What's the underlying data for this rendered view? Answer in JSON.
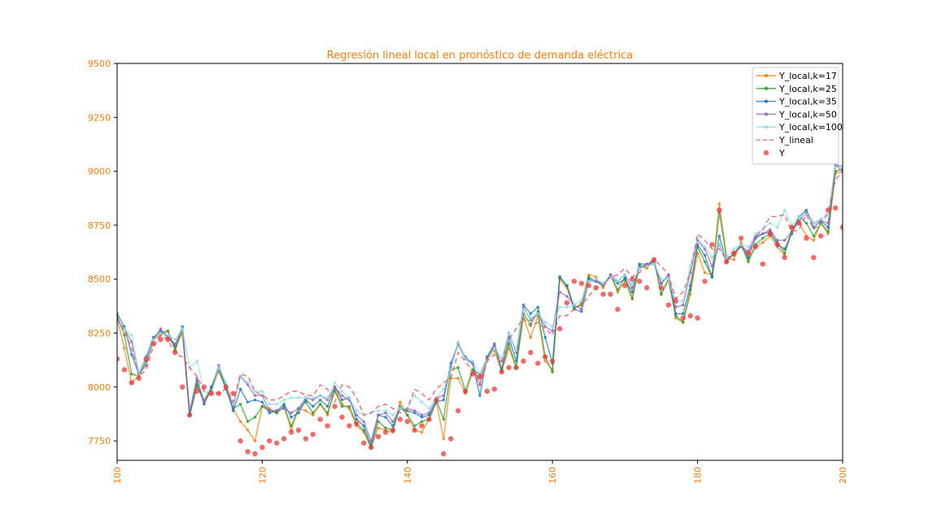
{
  "chart_data": {
    "type": "line",
    "title": "Regresión lineal local en pronóstico de demanda eléctrica",
    "xlabel": "",
    "ylabel": "",
    "xlim": [
      100,
      200
    ],
    "ylim": [
      7660,
      9500
    ],
    "xticks": [
      "100",
      "120",
      "140",
      "160",
      "180",
      "200"
    ],
    "yticks": [
      "7750",
      "8000",
      "8250",
      "8500",
      "8750",
      "9000",
      "9250",
      "9500"
    ],
    "grid": false,
    "legend_position": "top-right",
    "accent_color": "#ff7f0e",
    "x": [
      100,
      101,
      102,
      103,
      104,
      105,
      106,
      107,
      108,
      109,
      110,
      111,
      112,
      113,
      114,
      115,
      116,
      117,
      118,
      119,
      120,
      121,
      122,
      123,
      124,
      125,
      126,
      127,
      128,
      129,
      130,
      131,
      132,
      133,
      134,
      135,
      136,
      137,
      138,
      139,
      140,
      141,
      142,
      143,
      144,
      145,
      146,
      147,
      148,
      149,
      150,
      151,
      152,
      153,
      154,
      155,
      156,
      157,
      158,
      159,
      160,
      161,
      162,
      163,
      164,
      165,
      166,
      167,
      168,
      169,
      170,
      171,
      172,
      173,
      174,
      175,
      176,
      177,
      178,
      179,
      180,
      181,
      182,
      183,
      184,
      185,
      186,
      187,
      188,
      189,
      190,
      191,
      192,
      193,
      194,
      195,
      196,
      197,
      198,
      199,
      200
    ],
    "series": [
      {
        "name": "Y_local,k=17",
        "color": "#ff7f0e",
        "style": "solid-dot",
        "values": [
          8320,
          8180,
          8020,
          8050,
          8120,
          8220,
          8240,
          8260,
          8180,
          8250,
          7870,
          8000,
          7940,
          7990,
          8070,
          8000,
          7900,
          7840,
          7800,
          7750,
          7910,
          7900,
          7880,
          7910,
          7800,
          7900,
          7890,
          7870,
          7920,
          7870,
          7990,
          7920,
          7900,
          7820,
          7790,
          7720,
          7810,
          7800,
          7790,
          7930,
          7870,
          7800,
          7790,
          7850,
          7930,
          7760,
          8040,
          8040,
          7970,
          8070,
          8040,
          8130,
          8170,
          8070,
          8180,
          8090,
          8320,
          8230,
          8330,
          8120,
          8080,
          8500,
          8460,
          8360,
          8390,
          8520,
          8510,
          8460,
          8520,
          8440,
          8490,
          8410,
          8560,
          8550,
          8590,
          8430,
          8500,
          8320,
          8300,
          8430,
          8620,
          8530,
          8520,
          8850,
          8600,
          8590,
          8670,
          8590,
          8650,
          8670,
          8700,
          8650,
          8610,
          8740,
          8760,
          8700,
          8680,
          8760,
          8710,
          8990,
          9000
        ]
      },
      {
        "name": "Y_local,k=25",
        "color": "#2ca02c",
        "style": "solid-dot",
        "values": [
          8330,
          8240,
          8060,
          8050,
          8120,
          8220,
          8250,
          8260,
          8170,
          8270,
          7870,
          8010,
          7930,
          8000,
          8080,
          7990,
          7900,
          7920,
          7840,
          7860,
          7910,
          7890,
          7880,
          7910,
          7820,
          7900,
          7930,
          7880,
          7920,
          7880,
          7980,
          7910,
          7910,
          7830,
          7800,
          7720,
          7840,
          7810,
          7800,
          7910,
          7870,
          7820,
          7840,
          7850,
          7940,
          7850,
          8080,
          8090,
          7980,
          8080,
          8060,
          8130,
          8190,
          8080,
          8200,
          8090,
          8340,
          8290,
          8350,
          8140,
          8070,
          8510,
          8470,
          8370,
          8380,
          8510,
          8490,
          8470,
          8520,
          8450,
          8510,
          8410,
          8560,
          8560,
          8590,
          8430,
          8500,
          8330,
          8300,
          8450,
          8650,
          8580,
          8510,
          8810,
          8600,
          8610,
          8660,
          8580,
          8660,
          8690,
          8710,
          8670,
          8620,
          8720,
          8790,
          8760,
          8700,
          8760,
          8720,
          9000,
          9010
        ]
      },
      {
        "name": "Y_local,k=35",
        "color": "#1f77b4",
        "style": "solid-dot",
        "values": [
          8340,
          8280,
          8150,
          8060,
          8140,
          8230,
          8260,
          8230,
          8190,
          8280,
          7870,
          8030,
          7920,
          8000,
          8090,
          8000,
          7890,
          7990,
          7930,
          7940,
          7930,
          7880,
          7890,
          7920,
          7860,
          7880,
          7940,
          7910,
          7940,
          7910,
          8000,
          7940,
          7950,
          7850,
          7820,
          7730,
          7870,
          7860,
          7820,
          7900,
          7890,
          7880,
          7860,
          7870,
          7930,
          7940,
          8110,
          8200,
          8130,
          8110,
          7960,
          8140,
          8200,
          8080,
          8230,
          8120,
          8380,
          8340,
          8370,
          8230,
          8110,
          8510,
          8470,
          8360,
          8350,
          8500,
          8490,
          8480,
          8510,
          8480,
          8500,
          8440,
          8570,
          8570,
          8580,
          8480,
          8520,
          8340,
          8340,
          8470,
          8660,
          8610,
          8510,
          8700,
          8580,
          8620,
          8660,
          8600,
          8690,
          8710,
          8720,
          8660,
          8640,
          8710,
          8790,
          8820,
          8740,
          8770,
          8740,
          9030,
          9020
        ]
      },
      {
        "name": "Y_local,k=50",
        "color": "#9467bd",
        "style": "solid-dot",
        "values": [
          8310,
          8270,
          8210,
          8060,
          8100,
          8220,
          8270,
          8230,
          8200,
          8270,
          7890,
          8040,
          7930,
          7980,
          8100,
          8010,
          7910,
          8050,
          8010,
          7960,
          7960,
          7890,
          7890,
          7900,
          7880,
          7900,
          7950,
          7940,
          7960,
          7940,
          8000,
          7960,
          7940,
          7870,
          7840,
          7750,
          7870,
          7880,
          7840,
          7900,
          7900,
          7890,
          7870,
          7880,
          7950,
          7960,
          8090,
          8200,
          8140,
          8110,
          8010,
          8140,
          8190,
          8120,
          8250,
          8160,
          8370,
          8310,
          8340,
          8280,
          8260,
          8440,
          8420,
          8380,
          8360,
          8490,
          8490,
          8470,
          8520,
          8490,
          8520,
          8460,
          8550,
          8570,
          8570,
          8480,
          8520,
          8370,
          8380,
          8530,
          8680,
          8640,
          8560,
          8660,
          8580,
          8620,
          8650,
          8630,
          8700,
          8710,
          8730,
          8680,
          8680,
          8720,
          8770,
          8810,
          8760,
          8770,
          8760,
          9030,
          9000
        ]
      },
      {
        "name": "Y_local,k=100",
        "color": "#8fdfe8",
        "style": "solid-dot",
        "values": [
          8300,
          8270,
          8240,
          8060,
          8130,
          8220,
          8250,
          8240,
          8220,
          8270,
          8090,
          8120,
          7980,
          7970,
          8090,
          8020,
          7920,
          8050,
          8020,
          7980,
          7980,
          7920,
          7920,
          7940,
          7950,
          7950,
          7950,
          7950,
          7960,
          7950,
          8020,
          7980,
          7950,
          7890,
          7870,
          7880,
          7890,
          7890,
          7870,
          7900,
          7900,
          7960,
          7930,
          7900,
          7950,
          7990,
          8080,
          8210,
          8130,
          8120,
          8060,
          8120,
          8180,
          8130,
          8250,
          8170,
          8360,
          8320,
          8340,
          8300,
          8280,
          8370,
          8370,
          8380,
          8400,
          8490,
          8500,
          8480,
          8510,
          8490,
          8520,
          8480,
          8550,
          8560,
          8570,
          8500,
          8500,
          8390,
          8400,
          8560,
          8690,
          8650,
          8600,
          8660,
          8600,
          8640,
          8660,
          8650,
          8710,
          8730,
          8760,
          8740,
          8820,
          8750,
          8790,
          8800,
          8760,
          8780,
          8790,
          9040,
          9020
        ]
      },
      {
        "name": "Y_lineal",
        "color": "#e8605e",
        "style": "dashed",
        "values": [
          8320,
          8260,
          8180,
          8050,
          8080,
          8190,
          8240,
          8220,
          8150,
          8140,
          8090,
          8050,
          7980,
          7970,
          7970,
          7990,
          7930,
          8060,
          8050,
          7980,
          7960,
          7940,
          7940,
          7960,
          7980,
          7980,
          7960,
          7960,
          8010,
          7990,
          7930,
          8010,
          8000,
          7950,
          7870,
          7880,
          7910,
          7920,
          7900,
          7880,
          7900,
          7990,
          7970,
          7940,
          7990,
          8020,
          8040,
          8160,
          8120,
          8070,
          8010,
          8120,
          8150,
          8110,
          8220,
          8270,
          8320,
          8280,
          8300,
          8270,
          8240,
          8330,
          8330,
          8360,
          8380,
          8420,
          8460,
          8470,
          8510,
          8520,
          8550,
          8510,
          8530,
          8570,
          8590,
          8560,
          8520,
          8410,
          8440,
          8530,
          8710,
          8680,
          8640,
          8640,
          8590,
          8620,
          8650,
          8620,
          8700,
          8730,
          8790,
          8790,
          8800,
          8720,
          8730,
          8800,
          8730,
          8760,
          8810,
          8960,
          9000
        ]
      },
      {
        "name": "Y",
        "color": "#f03a3a",
        "style": "scatter",
        "values": [
          8130,
          8080,
          8020,
          8040,
          8130,
          8200,
          8220,
          8220,
          8160,
          8000,
          7870,
          7980,
          8000,
          7970,
          7970,
          8000,
          7970,
          7750,
          7700,
          7690,
          7720,
          7750,
          7740,
          7760,
          7790,
          7800,
          7760,
          7780,
          7850,
          7820,
          7910,
          7860,
          7820,
          7830,
          7740,
          7720,
          7770,
          7790,
          7800,
          7850,
          7840,
          7800,
          7820,
          7850,
          7940,
          7690,
          7760,
          7890,
          7980,
          8060,
          8050,
          7980,
          7990,
          8070,
          8090,
          8090,
          8120,
          8160,
          8110,
          8140,
          8120,
          8270,
          8390,
          8490,
          8480,
          8470,
          8460,
          8430,
          8430,
          8360,
          8470,
          8500,
          8490,
          8460,
          8590,
          8460,
          8380,
          8400,
          8320,
          8330,
          8320,
          8490,
          8660,
          8820,
          8580,
          8620,
          8690,
          8620,
          8650,
          8570,
          8710,
          8660,
          8600,
          8740,
          8760,
          8690,
          8600,
          8700,
          8820,
          8830,
          8740
        ]
      }
    ]
  }
}
